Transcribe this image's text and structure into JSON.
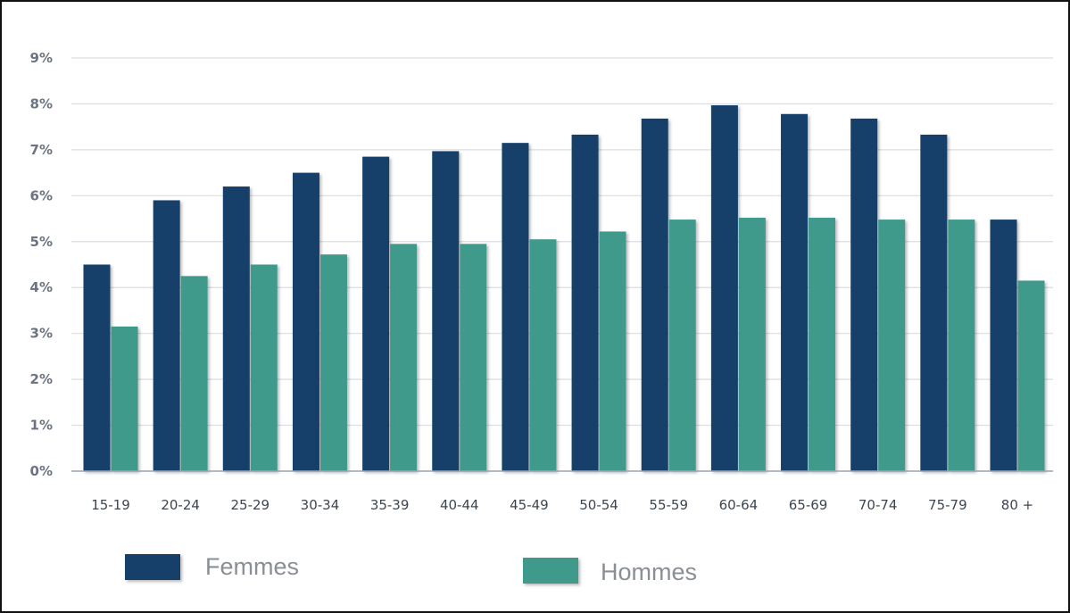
{
  "chart_data": {
    "type": "bar",
    "categories": [
      "15-19",
      "20-24",
      "25-29",
      "30-34",
      "35-39",
      "40-44",
      "45-49",
      "50-54",
      "55-59",
      "60-64",
      "65-69",
      "70-74",
      "75-79",
      "80 +"
    ],
    "series": [
      {
        "name": "Femmes",
        "color": "#123f6b",
        "values": [
          4.5,
          5.9,
          6.2,
          6.5,
          6.85,
          6.97,
          7.15,
          7.33,
          7.68,
          7.97,
          7.78,
          7.68,
          7.33,
          5.48
        ]
      },
      {
        "name": "Hommes",
        "color": "#3f9a8c",
        "values": [
          3.15,
          4.25,
          4.5,
          4.72,
          4.95,
          4.95,
          5.05,
          5.22,
          5.48,
          5.52,
          5.52,
          5.48,
          5.48,
          4.15
        ]
      }
    ],
    "y_ticks": [
      "0%",
      "1%",
      "2%",
      "3%",
      "4%",
      "5%",
      "6%",
      "7%",
      "8%",
      "9%"
    ],
    "ylim": [
      0,
      9
    ],
    "y_unit": "%",
    "grid": true,
    "legend_position": "bottom"
  }
}
